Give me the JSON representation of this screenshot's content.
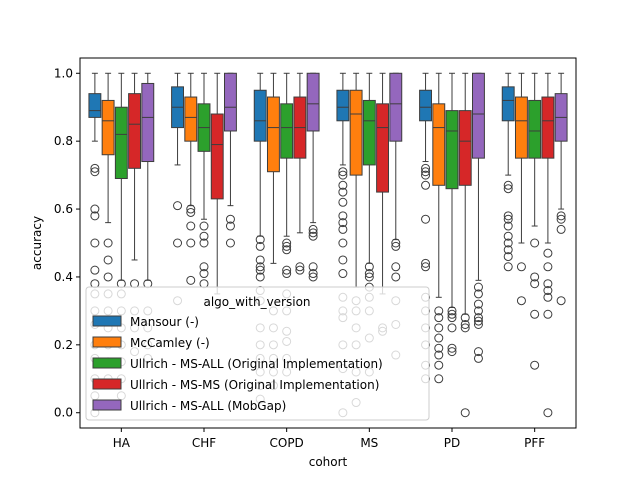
{
  "chart_data": {
    "type": "box",
    "xlabel": "cohort",
    "ylabel": "accuracy",
    "ylim": [
      -0.045,
      1.045
    ],
    "yticks": [
      "0.0",
      "0.2",
      "0.4",
      "0.6",
      "0.8",
      "1.0"
    ],
    "categories": [
      "HA",
      "CHF",
      "COPD",
      "MS",
      "PD",
      "PFF"
    ],
    "grid": false,
    "legend": {
      "title": "algo_with_version",
      "placement": "lower-left"
    },
    "series": [
      {
        "name": "Mansour (-)",
        "color": "#1f77b4",
        "boxes": [
          {
            "q1": 0.87,
            "median": 0.89,
            "q3": 0.94,
            "whisker_low": 0.8,
            "whisker_high": 1.0,
            "outliers": [
              0.72,
              0.71,
              0.6,
              0.58,
              0.5,
              0.42,
              0.38,
              0.35,
              0.3,
              0.26,
              0.2,
              0.16,
              0.1,
              0.05,
              0.0
            ]
          },
          {
            "q1": 0.84,
            "median": 0.9,
            "q3": 0.96,
            "whisker_low": 0.73,
            "whisker_high": 1.0,
            "outliers": [
              0.61,
              0.5,
              0.33
            ]
          },
          {
            "q1": 0.8,
            "median": 0.86,
            "q3": 0.95,
            "whisker_low": 0.52,
            "whisker_high": 1.0,
            "outliers": [
              0.51,
              0.49,
              0.45,
              0.43,
              0.42,
              0.4,
              0.36,
              0.33,
              0.25,
              0.2,
              0.16,
              0.12,
              0.08,
              0.04
            ]
          },
          {
            "q1": 0.86,
            "median": 0.9,
            "q3": 0.95,
            "whisker_low": 0.73,
            "whisker_high": 1.0,
            "outliers": [
              0.71,
              0.7,
              0.67,
              0.65,
              0.62,
              0.58,
              0.56,
              0.54,
              0.5,
              0.45,
              0.41,
              0.34,
              0.3,
              0.28,
              0.2,
              0.13,
              0.0
            ]
          },
          {
            "q1": 0.86,
            "median": 0.9,
            "q3": 0.95,
            "whisker_low": 0.74,
            "whisker_high": 1.0,
            "outliers": [
              0.72,
              0.71,
              0.7,
              0.67,
              0.57,
              0.44,
              0.43,
              0.34,
              0.3,
              0.25,
              0.2,
              0.14,
              0.1
            ]
          },
          {
            "q1": 0.86,
            "median": 0.92,
            "q3": 0.96,
            "whisker_low": 0.7,
            "whisker_high": 1.0,
            "outliers": [
              0.67,
              0.66,
              0.58,
              0.57,
              0.55,
              0.52,
              0.5,
              0.48,
              0.46,
              0.43
            ]
          }
        ]
      },
      {
        "name": "McCamley (-)",
        "color": "#ff7f0e",
        "boxes": [
          {
            "q1": 0.76,
            "median": 0.86,
            "q3": 0.92,
            "whisker_low": 0.56,
            "whisker_high": 1.0,
            "outliers": [
              0.5,
              0.45,
              0.4,
              0.35,
              0.3,
              0.25,
              0.2,
              0.15,
              0.1
            ]
          },
          {
            "q1": 0.8,
            "median": 0.87,
            "q3": 0.93,
            "whisker_low": 0.61,
            "whisker_high": 1.0,
            "outliers": [
              0.6,
              0.59,
              0.55,
              0.5,
              0.39
            ]
          },
          {
            "q1": 0.71,
            "median": 0.84,
            "q3": 0.93,
            "whisker_low": 0.44,
            "whisker_high": 1.0,
            "outliers": [
              0.3,
              0.25,
              0.2,
              0.16,
              0.12,
              0.08
            ]
          },
          {
            "q1": 0.7,
            "median": 0.88,
            "q3": 0.95,
            "whisker_low": 0.37,
            "whisker_high": 1.0,
            "outliers": [
              0.33,
              0.3,
              0.25,
              0.2,
              0.12,
              0.03
            ]
          },
          {
            "q1": 0.67,
            "median": 0.84,
            "q3": 0.91,
            "whisker_low": 0.34,
            "whisker_high": 1.0,
            "outliers": [
              0.3,
              0.28,
              0.25,
              0.22,
              0.19,
              0.17,
              0.14,
              0.1
            ]
          },
          {
            "q1": 0.75,
            "median": 0.86,
            "q3": 0.93,
            "whisker_low": 0.5,
            "whisker_high": 1.0,
            "outliers": [
              0.43,
              0.33
            ]
          }
        ]
      },
      {
        "name": "Ullrich - MS-ALL (Original Implementation)",
        "color": "#2ca02c",
        "boxes": [
          {
            "q1": 0.69,
            "median": 0.82,
            "q3": 0.9,
            "whisker_low": 0.39,
            "whisker_high": 1.0,
            "outliers": [
              0.38,
              0.35,
              0.3,
              0.25,
              0.2,
              0.15,
              0.1,
              0.05
            ]
          },
          {
            "q1": 0.77,
            "median": 0.84,
            "q3": 0.91,
            "whisker_low": 0.57,
            "whisker_high": 1.0,
            "outliers": [
              0.55,
              0.52,
              0.5,
              0.43,
              0.41,
              0.38
            ]
          },
          {
            "q1": 0.75,
            "median": 0.84,
            "q3": 0.91,
            "whisker_low": 0.52,
            "whisker_high": 1.0,
            "outliers": [
              0.5,
              0.49,
              0.48,
              0.42,
              0.41,
              0.35,
              0.3,
              0.24,
              0.21,
              0.16,
              0.12
            ]
          },
          {
            "q1": 0.73,
            "median": 0.86,
            "q3": 0.92,
            "whisker_low": 0.44,
            "whisker_high": 1.0,
            "outliers": [
              0.43,
              0.41,
              0.4,
              0.37,
              0.34,
              0.3,
              0.22,
              0.12
            ]
          },
          {
            "q1": 0.66,
            "median": 0.83,
            "q3": 0.89,
            "whisker_low": 0.31,
            "whisker_high": 1.0,
            "outliers": [
              0.3,
              0.29,
              0.28,
              0.25,
              0.19,
              0.18
            ]
          },
          {
            "q1": 0.75,
            "median": 0.83,
            "q3": 0.92,
            "whisker_low": 0.55,
            "whisker_high": 1.0,
            "outliers": [
              0.5,
              0.4,
              0.38,
              0.29,
              0.14
            ]
          }
        ]
      },
      {
        "name": "Ullrich - MS-MS (Original Implementation)",
        "color": "#d62728",
        "boxes": [
          {
            "q1": 0.72,
            "median": 0.85,
            "q3": 0.94,
            "whisker_low": 0.45,
            "whisker_high": 1.0,
            "outliers": [
              0.38,
              0.3,
              0.25,
              0.18
            ]
          },
          {
            "q1": 0.63,
            "median": 0.79,
            "q3": 0.88,
            "whisker_low": 0.35,
            "whisker_high": 1.0,
            "outliers": []
          },
          {
            "q1": 0.75,
            "median": 0.84,
            "q3": 0.93,
            "whisker_low": 0.53,
            "whisker_high": 1.0,
            "outliers": [
              0.43,
              0.42
            ]
          },
          {
            "q1": 0.65,
            "median": 0.84,
            "q3": 0.91,
            "whisker_low": 0.35,
            "whisker_high": 1.0,
            "outliers": [
              0.25,
              0.24
            ]
          },
          {
            "q1": 0.67,
            "median": 0.8,
            "q3": 0.89,
            "whisker_low": 0.29,
            "whisker_high": 1.0,
            "outliers": [
              0.28,
              0.26,
              0.25,
              0.0
            ]
          },
          {
            "q1": 0.75,
            "median": 0.86,
            "q3": 0.93,
            "whisker_low": 0.5,
            "whisker_high": 1.0,
            "outliers": [
              0.47,
              0.43,
              0.38,
              0.36,
              0.34,
              0.29,
              0.0
            ]
          }
        ]
      },
      {
        "name": "Ullrich - MS-ALL (MobGap)",
        "color": "#9467bd",
        "boxes": [
          {
            "q1": 0.74,
            "median": 0.87,
            "q3": 0.97,
            "whisker_low": 0.39,
            "whisker_high": 1.0,
            "outliers": [
              0.38,
              0.3,
              0.25,
              0.2,
              0.16
            ]
          },
          {
            "q1": 0.83,
            "median": 0.9,
            "q3": 1.0,
            "whisker_low": 0.61,
            "whisker_high": 1.0,
            "outliers": [
              0.57,
              0.55,
              0.5
            ]
          },
          {
            "q1": 0.83,
            "median": 0.91,
            "q3": 1.0,
            "whisker_low": 0.56,
            "whisker_high": 1.0,
            "outliers": [
              0.54,
              0.53,
              0.52,
              0.43,
              0.41,
              0.4
            ]
          },
          {
            "q1": 0.8,
            "median": 0.91,
            "q3": 1.0,
            "whisker_low": 0.51,
            "whisker_high": 1.0,
            "outliers": [
              0.5,
              0.49,
              0.43,
              0.4,
              0.33,
              0.26,
              0.17
            ]
          },
          {
            "q1": 0.75,
            "median": 0.88,
            "q3": 1.0,
            "whisker_low": 0.39,
            "whisker_high": 1.0,
            "outliers": [
              0.37,
              0.35,
              0.32,
              0.3,
              0.28,
              0.27,
              0.26,
              0.18,
              0.16
            ]
          },
          {
            "q1": 0.8,
            "median": 0.87,
            "q3": 0.94,
            "whisker_low": 0.6,
            "whisker_high": 1.0,
            "outliers": [
              0.58,
              0.57,
              0.54,
              0.33
            ]
          }
        ]
      }
    ]
  }
}
